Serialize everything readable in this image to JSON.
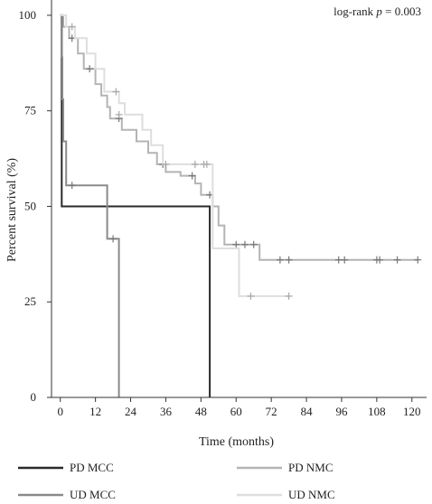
{
  "chart_data": {
    "type": "line",
    "subtype": "kaplan-meier",
    "xlabel": "Time (months)",
    "ylabel": "Percent survival (%)",
    "xlim": [
      -3,
      125
    ],
    "ylim": [
      0,
      104
    ],
    "xticks": [
      0,
      12,
      24,
      36,
      48,
      60,
      72,
      84,
      96,
      108,
      120
    ],
    "yticks": [
      0,
      25,
      50,
      75,
      100
    ],
    "annotation": {
      "prefix": "log-rank ",
      "italic": "p",
      "suffix": " = 0.003"
    },
    "legend_position": "bottom",
    "series": [
      {
        "name": "PD NMC",
        "color": "#b4b4b4",
        "points": [
          [
            0,
            100
          ],
          [
            1,
            100
          ],
          [
            1,
            97
          ],
          [
            3,
            97
          ],
          [
            3,
            94
          ],
          [
            6,
            94
          ],
          [
            6,
            90
          ],
          [
            8,
            90
          ],
          [
            8,
            86
          ],
          [
            12,
            86
          ],
          [
            12,
            82
          ],
          [
            14,
            82
          ],
          [
            14,
            79
          ],
          [
            16,
            79
          ],
          [
            16,
            76
          ],
          [
            17,
            76
          ],
          [
            17,
            73
          ],
          [
            21,
            73
          ],
          [
            21,
            70
          ],
          [
            26,
            70
          ],
          [
            26,
            67
          ],
          [
            30,
            67
          ],
          [
            30,
            64
          ],
          [
            33,
            64
          ],
          [
            33,
            61
          ],
          [
            36,
            61
          ],
          [
            36,
            59
          ],
          [
            41,
            59
          ],
          [
            41,
            58
          ],
          [
            46,
            58
          ],
          [
            46,
            56
          ],
          [
            48,
            56
          ],
          [
            48,
            53
          ],
          [
            52,
            53
          ],
          [
            52,
            50
          ],
          [
            54,
            50
          ],
          [
            54,
            45
          ],
          [
            56,
            45
          ],
          [
            56,
            40
          ],
          [
            68,
            40
          ],
          [
            68,
            36
          ],
          [
            122,
            36
          ]
        ],
        "censored": [
          [
            4,
            94
          ],
          [
            10,
            86
          ],
          [
            20,
            73
          ],
          [
            35,
            61
          ],
          [
            45,
            58
          ],
          [
            51,
            53
          ],
          [
            60,
            40
          ],
          [
            63,
            40
          ],
          [
            66,
            40
          ],
          [
            75,
            36
          ],
          [
            78,
            36
          ],
          [
            95,
            36
          ],
          [
            97,
            36
          ],
          [
            108,
            36
          ],
          [
            109,
            36
          ],
          [
            115,
            36
          ],
          [
            122,
            36
          ]
        ]
      },
      {
        "name": "PD MCC",
        "color": "#2a2a2a",
        "points": [
          [
            0,
            100
          ],
          [
            0.5,
            100
          ],
          [
            0.5,
            50
          ],
          [
            51,
            50
          ],
          [
            51,
            0
          ]
        ],
        "censored": []
      },
      {
        "name": "UD MCC",
        "color": "#8a8a8a",
        "points": [
          [
            0,
            100
          ],
          [
            0.4,
            100
          ],
          [
            0.4,
            89
          ],
          [
            0.7,
            89
          ],
          [
            0.7,
            78
          ],
          [
            1,
            78
          ],
          [
            1,
            67
          ],
          [
            2,
            67
          ],
          [
            2,
            55.5
          ],
          [
            16,
            55.5
          ],
          [
            16,
            41.5
          ],
          [
            20,
            41.5
          ],
          [
            20,
            0
          ]
        ],
        "censored": [
          [
            4,
            55.5
          ],
          [
            18,
            41.5
          ]
        ]
      },
      {
        "name": "UD NMC",
        "color": "#dedede",
        "points": [
          [
            0,
            100
          ],
          [
            2,
            100
          ],
          [
            2,
            97
          ],
          [
            5,
            97
          ],
          [
            5,
            94
          ],
          [
            9,
            94
          ],
          [
            9,
            90
          ],
          [
            12,
            90
          ],
          [
            12,
            86
          ],
          [
            15,
            86
          ],
          [
            15,
            80
          ],
          [
            20,
            80
          ],
          [
            20,
            77
          ],
          [
            22,
            77
          ],
          [
            22,
            74
          ],
          [
            28,
            74
          ],
          [
            28,
            70
          ],
          [
            31,
            70
          ],
          [
            31,
            66
          ],
          [
            35,
            66
          ],
          [
            35,
            61
          ],
          [
            52,
            61
          ],
          [
            52,
            39
          ],
          [
            61,
            39
          ],
          [
            61,
            26.5
          ],
          [
            78,
            26.5
          ]
        ],
        "censored": [
          [
            4,
            97
          ],
          [
            19,
            80
          ],
          [
            20,
            74
          ],
          [
            36,
            61
          ],
          [
            46,
            61
          ],
          [
            49,
            61
          ],
          [
            50,
            61
          ],
          [
            65,
            26.5
          ],
          [
            78,
            26.5
          ]
        ]
      }
    ],
    "legend": [
      {
        "label": "PD MCC",
        "color": "#2a2a2a"
      },
      {
        "label": "PD NMC",
        "color": "#b4b4b4"
      },
      {
        "label": "UD MCC",
        "color": "#8a8a8a"
      },
      {
        "label": "UD NMC",
        "color": "#dedede"
      }
    ]
  }
}
